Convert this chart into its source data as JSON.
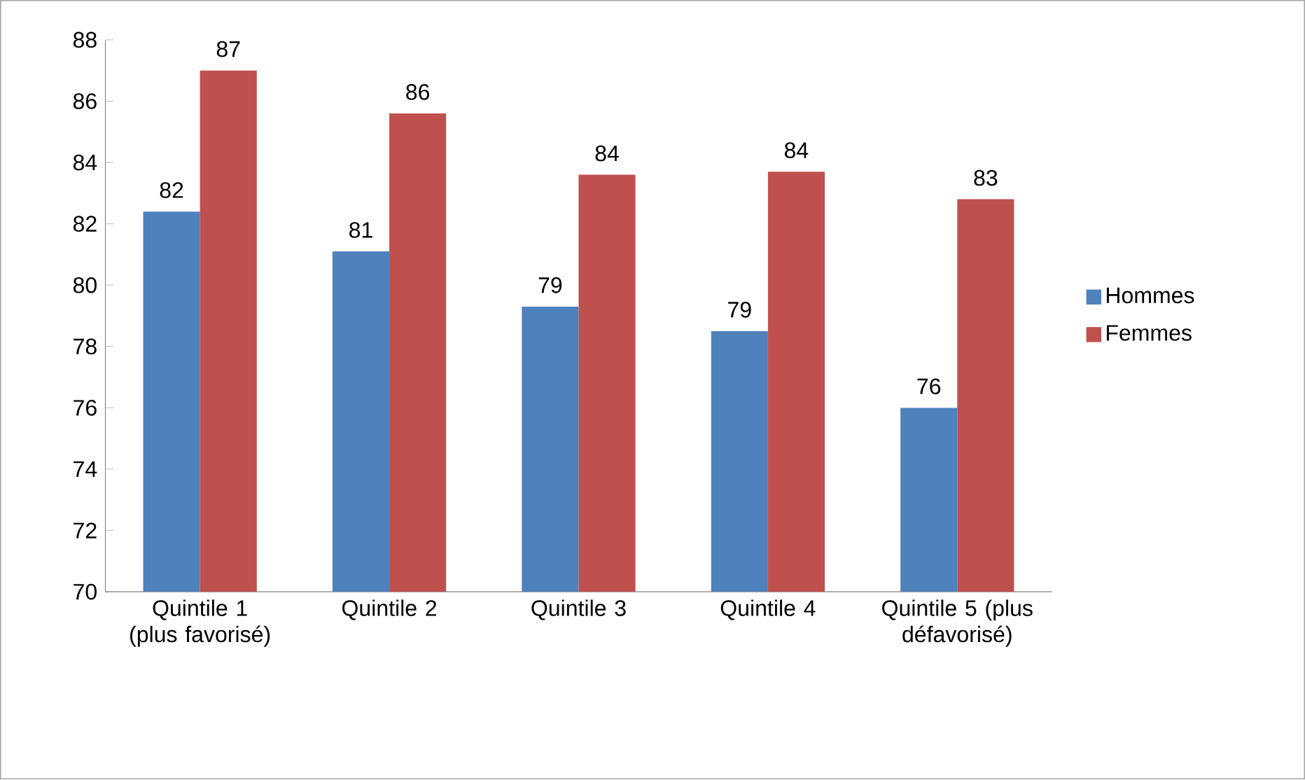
{
  "chart_data": {
    "type": "bar",
    "categories": [
      "Quintile 1 (plus favorisé)",
      "Quintile 2",
      "Quintile 3",
      "Quintile 4",
      "Quintile 5 (plus défavorisé)"
    ],
    "series": [
      {
        "name": "Hommes",
        "color": "#4f81bd",
        "values": [
          82.4,
          81.1,
          79.3,
          78.5,
          76.0
        ],
        "value_labels": [
          "82",
          "81",
          "79",
          "79",
          "76"
        ]
      },
      {
        "name": "Femmes",
        "color": "#c0504d",
        "values": [
          87.0,
          85.6,
          83.6,
          83.7,
          82.8
        ],
        "value_labels": [
          "87",
          "86",
          "84",
          "84",
          "83"
        ]
      }
    ],
    "ylim": [
      70,
      88
    ],
    "yticks": [
      70,
      72,
      74,
      76,
      78,
      80,
      82,
      84,
      86,
      88
    ],
    "grid": false,
    "legend": "right"
  }
}
